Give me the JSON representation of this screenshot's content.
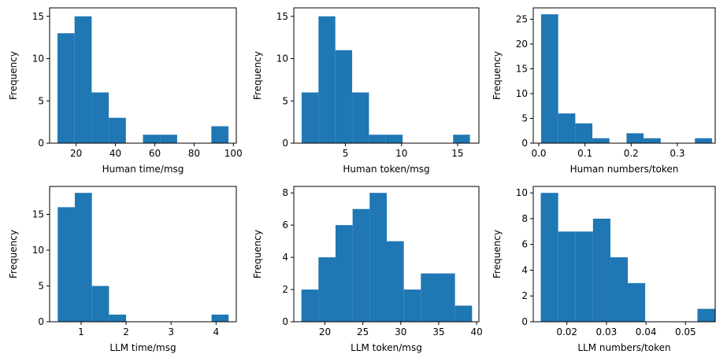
{
  "bar_color": "#1f77b4",
  "chart_data": [
    {
      "type": "bar",
      "xlabel": "Human time/msg",
      "ylabel": "Frequency",
      "xlim": [
        6.5,
        101.5
      ],
      "ylim": [
        0,
        16
      ],
      "xticks": [
        20,
        40,
        60,
        80,
        100
      ],
      "xtick_labels": [
        "20",
        "40",
        "60",
        "80",
        "100"
      ],
      "yticks": [
        0,
        5,
        10,
        15
      ],
      "ytick_labels": [
        "0",
        "5",
        "10",
        "15"
      ],
      "bins": [
        10.5,
        19.2,
        27.9,
        36.6,
        45.3,
        54.0,
        62.7,
        71.4,
        80.1,
        88.8,
        97.5
      ],
      "counts": [
        13,
        15,
        6,
        3,
        0,
        1,
        1,
        0,
        0,
        2
      ]
    },
    {
      "type": "bar",
      "xlabel": "Human token/msg",
      "ylabel": "Frequency",
      "xlim": [
        0.4,
        16.9
      ],
      "ylim": [
        0,
        16
      ],
      "xticks": [
        5,
        10,
        15
      ],
      "xtick_labels": [
        "5",
        "10",
        "15"
      ],
      "yticks": [
        0,
        5,
        10,
        15
      ],
      "ytick_labels": [
        "0",
        "5",
        "10",
        "15"
      ],
      "bins": [
        1.1,
        2.6,
        4.1,
        5.6,
        7.1,
        8.6,
        10.1,
        11.6,
        13.1,
        14.6,
        16.1
      ],
      "counts": [
        6,
        15,
        11,
        6,
        1,
        1,
        0,
        0,
        0,
        1
      ]
    },
    {
      "type": "bar",
      "xlabel": "Human numbers/token",
      "ylabel": "Frequency",
      "xlim": [
        -0.012,
        0.382
      ],
      "ylim": [
        0,
        27.3
      ],
      "xticks": [
        0.0,
        0.1,
        0.2,
        0.3
      ],
      "xtick_labels": [
        "0.0",
        "0.1",
        "0.2",
        "0.3"
      ],
      "yticks": [
        0,
        5,
        10,
        15,
        20,
        25
      ],
      "ytick_labels": [
        "0",
        "5",
        "10",
        "15",
        "20",
        "25"
      ],
      "bins": [
        0.005,
        0.042,
        0.079,
        0.116,
        0.153,
        0.19,
        0.227,
        0.264,
        0.301,
        0.338,
        0.375
      ],
      "counts": [
        26,
        6,
        4,
        1,
        0,
        2,
        1,
        0,
        0,
        1
      ]
    },
    {
      "type": "bar",
      "xlabel": "LLM time/msg",
      "ylabel": "Frequency",
      "xlim": [
        0.3,
        4.45
      ],
      "ylim": [
        0,
        18.9
      ],
      "xticks": [
        1,
        2,
        3,
        4
      ],
      "xtick_labels": [
        "1",
        "2",
        "3",
        "4"
      ],
      "yticks": [
        0,
        5,
        10,
        15
      ],
      "ytick_labels": [
        "0",
        "5",
        "10",
        "15"
      ],
      "bins": [
        0.48,
        0.86,
        1.24,
        1.62,
        2.0,
        2.38,
        2.76,
        3.14,
        3.52,
        3.9,
        4.28
      ],
      "counts": [
        16,
        18,
        5,
        1,
        0,
        0,
        0,
        0,
        0,
        1
      ]
    },
    {
      "type": "bar",
      "xlabel": "LLM token/msg",
      "ylabel": "Frequency",
      "xlim": [
        15.9,
        40.3
      ],
      "ylim": [
        0,
        8.4
      ],
      "xticks": [
        20,
        25,
        30,
        35,
        40
      ],
      "xtick_labels": [
        "20",
        "25",
        "30",
        "35",
        "40"
      ],
      "yticks": [
        0,
        2,
        4,
        6,
        8
      ],
      "ytick_labels": [
        "0",
        "2",
        "4",
        "6",
        "8"
      ],
      "bins": [
        16.9,
        19.15,
        21.4,
        23.65,
        25.9,
        28.15,
        30.4,
        32.65,
        34.9,
        37.15,
        39.4
      ],
      "counts": [
        2,
        4,
        6,
        7,
        8,
        5,
        2,
        3,
        3,
        1
      ]
    },
    {
      "type": "bar",
      "xlabel": "LLM numbers/token",
      "ylabel": "Frequency",
      "xlim": [
        0.0115,
        0.0575
      ],
      "ylim": [
        0,
        10.5
      ],
      "xticks": [
        0.02,
        0.03,
        0.04,
        0.05
      ],
      "xtick_labels": [
        "0.02",
        "0.03",
        "0.04",
        "0.05"
      ],
      "yticks": [
        0,
        2,
        4,
        6,
        8,
        10
      ],
      "ytick_labels": [
        "0",
        "2",
        "4",
        "6",
        "8",
        "10"
      ],
      "bins": [
        0.0134,
        0.0178,
        0.0222,
        0.0266,
        0.031,
        0.0354,
        0.0398,
        0.0442,
        0.0486,
        0.053,
        0.0574
      ],
      "counts": [
        10,
        7,
        7,
        8,
        5,
        3,
        0,
        0,
        0,
        1
      ]
    }
  ]
}
